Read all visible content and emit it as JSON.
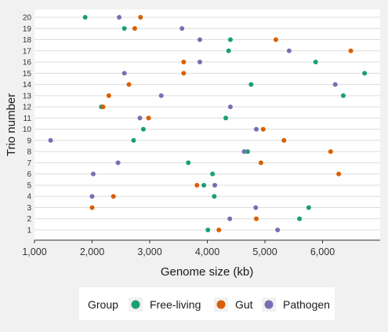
{
  "chart_data": {
    "type": "scatter",
    "title": "",
    "xlabel": "Genome size (kb)",
    "ylabel": "Trio number",
    "xlim": [
      1000,
      7000
    ],
    "x_ticks": [
      1000,
      2000,
      3000,
      4000,
      5000,
      6000
    ],
    "x_tick_labels": [
      "1,000",
      "2,000",
      "3,000",
      "4,000",
      "5,000",
      "6,000"
    ],
    "y_categories": [
      "1",
      "2",
      "3",
      "4",
      "5",
      "6",
      "7",
      "8",
      "9",
      "10",
      "11",
      "12",
      "13",
      "14",
      "15",
      "16",
      "17",
      "18",
      "19",
      "20"
    ],
    "grid": "horizontal",
    "legend": {
      "title": "Group",
      "placement": "bottom"
    },
    "series": [
      {
        "name": "Free-living",
        "color": "#1b9e77",
        "points": [
          {
            "trio": 1,
            "x": 4010
          },
          {
            "trio": 2,
            "x": 5600
          },
          {
            "trio": 3,
            "x": 5760
          },
          {
            "trio": 4,
            "x": 4120
          },
          {
            "trio": 5,
            "x": 3940
          },
          {
            "trio": 6,
            "x": 4090
          },
          {
            "trio": 7,
            "x": 3670
          },
          {
            "trio": 8,
            "x": 4700
          },
          {
            "trio": 9,
            "x": 2720
          },
          {
            "trio": 10,
            "x": 2890
          },
          {
            "trio": 11,
            "x": 4320
          },
          {
            "trio": 12,
            "x": 2160
          },
          {
            "trio": 13,
            "x": 6360
          },
          {
            "trio": 14,
            "x": 4760
          },
          {
            "trio": 15,
            "x": 6730
          },
          {
            "trio": 16,
            "x": 5880
          },
          {
            "trio": 17,
            "x": 4370
          },
          {
            "trio": 18,
            "x": 4400
          },
          {
            "trio": 19,
            "x": 2560
          },
          {
            "trio": 20,
            "x": 1880
          }
        ]
      },
      {
        "name": "Gut",
        "color": "#d95f02",
        "points": [
          {
            "trio": 1,
            "x": 4200
          },
          {
            "trio": 2,
            "x": 4850
          },
          {
            "trio": 3,
            "x": 2000
          },
          {
            "trio": 4,
            "x": 2370
          },
          {
            "trio": 5,
            "x": 3820
          },
          {
            "trio": 6,
            "x": 6280
          },
          {
            "trio": 7,
            "x": 4930
          },
          {
            "trio": 8,
            "x": 6140
          },
          {
            "trio": 9,
            "x": 5330
          },
          {
            "trio": 10,
            "x": 4970
          },
          {
            "trio": 11,
            "x": 2980
          },
          {
            "trio": 12,
            "x": 2190
          },
          {
            "trio": 13,
            "x": 2290
          },
          {
            "trio": 14,
            "x": 2640
          },
          {
            "trio": 15,
            "x": 3590
          },
          {
            "trio": 16,
            "x": 3590
          },
          {
            "trio": 17,
            "x": 6490
          },
          {
            "trio": 18,
            "x": 5190
          },
          {
            "trio": 19,
            "x": 2740
          },
          {
            "trio": 20,
            "x": 2840
          }
        ]
      },
      {
        "name": "Pathogen",
        "color": "#7570b3",
        "points": [
          {
            "trio": 1,
            "x": 5220
          },
          {
            "trio": 2,
            "x": 4390
          },
          {
            "trio": 3,
            "x": 4840
          },
          {
            "trio": 4,
            "x": 2000
          },
          {
            "trio": 5,
            "x": 4130
          },
          {
            "trio": 6,
            "x": 2020
          },
          {
            "trio": 7,
            "x": 2450
          },
          {
            "trio": 8,
            "x": 4640
          },
          {
            "trio": 9,
            "x": 1280
          },
          {
            "trio": 10,
            "x": 4850
          },
          {
            "trio": 11,
            "x": 2830
          },
          {
            "trio": 12,
            "x": 4400
          },
          {
            "trio": 13,
            "x": 3200
          },
          {
            "trio": 14,
            "x": 6220
          },
          {
            "trio": 15,
            "x": 2560
          },
          {
            "trio": 16,
            "x": 3870
          },
          {
            "trio": 17,
            "x": 5420
          },
          {
            "trio": 18,
            "x": 3870
          },
          {
            "trio": 19,
            "x": 3560
          },
          {
            "trio": 20,
            "x": 2470
          }
        ]
      }
    ]
  }
}
